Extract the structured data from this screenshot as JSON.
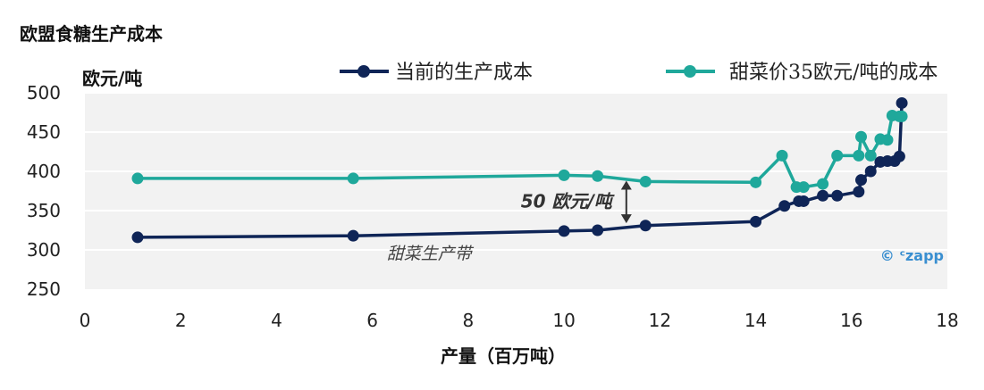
{
  "chart_data": {
    "type": "line",
    "title": "欧盟食糖生产成本",
    "ylabel": "欧元/吨",
    "xlabel": "产量（百万吨）",
    "xlim": [
      0,
      18
    ],
    "ylim": [
      250,
      500
    ],
    "x_ticks": [
      "0",
      "2",
      "4",
      "6",
      "8",
      "10",
      "12",
      "14",
      "16",
      "18"
    ],
    "y_ticks": [
      "250",
      "300",
      "350",
      "400",
      "450",
      "500"
    ],
    "grid": true,
    "legend_position": "top",
    "series": [
      {
        "name": "当前的生产成本",
        "color": "#0f2557",
        "x": [
          1.1,
          5.6,
          10.0,
          10.7,
          11.7,
          14.0,
          14.6,
          14.9,
          15.0,
          15.4,
          15.7,
          16.15,
          16.2,
          16.4,
          16.6,
          16.75,
          16.9,
          17.0,
          17.05
        ],
        "y": [
          316,
          318,
          324,
          325,
          331,
          336,
          356,
          362,
          362,
          369,
          369,
          374,
          389,
          400,
          412,
          413,
          413,
          419,
          487
        ]
      },
      {
        "name": "甜菜价35欧元/吨的成本",
        "color": "#1fa89b",
        "x": [
          1.1,
          5.6,
          10.0,
          10.7,
          11.7,
          14.0,
          14.55,
          14.85,
          15.0,
          15.4,
          15.7,
          16.15,
          16.2,
          16.4,
          16.6,
          16.75,
          16.85,
          17.0,
          17.05
        ],
        "y": [
          391,
          391,
          395,
          394,
          387,
          386,
          420,
          380,
          380,
          384,
          420,
          420,
          444,
          420,
          441,
          440,
          471,
          470,
          470
        ]
      }
    ],
    "annotations": {
      "gap_label": "50 欧元/吨",
      "band_label": "甜菜生产带",
      "brand": "© ᶜzapp"
    }
  }
}
